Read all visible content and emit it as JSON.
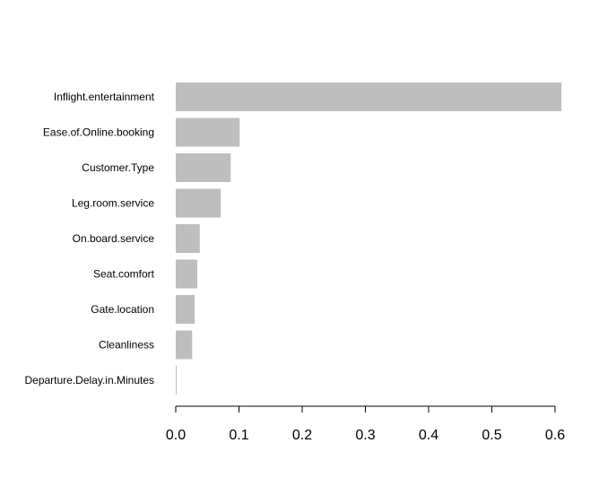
{
  "chart_data": {
    "type": "bar",
    "orientation": "horizontal",
    "title": "",
    "xlabel": "",
    "ylabel": "",
    "categories": [
      "Inflight.entertainment",
      "Ease.of.Online.booking",
      "Customer.Type",
      "Leg.room.service",
      "On.board.service",
      "Seat.comfort",
      "Gate.location",
      "Cleanliness",
      "Departure.Delay.in.Minutes"
    ],
    "values": [
      0.61,
      0.101,
      0.087,
      0.071,
      0.038,
      0.034,
      0.03,
      0.026,
      0.001
    ],
    "xlim": [
      0,
      0.6
    ],
    "x_ticks": [
      "0.0",
      "0.1",
      "0.2",
      "0.3",
      "0.4",
      "0.5",
      "0.6"
    ],
    "bar_color": "#bebebe",
    "grid": false,
    "legend": "none"
  }
}
